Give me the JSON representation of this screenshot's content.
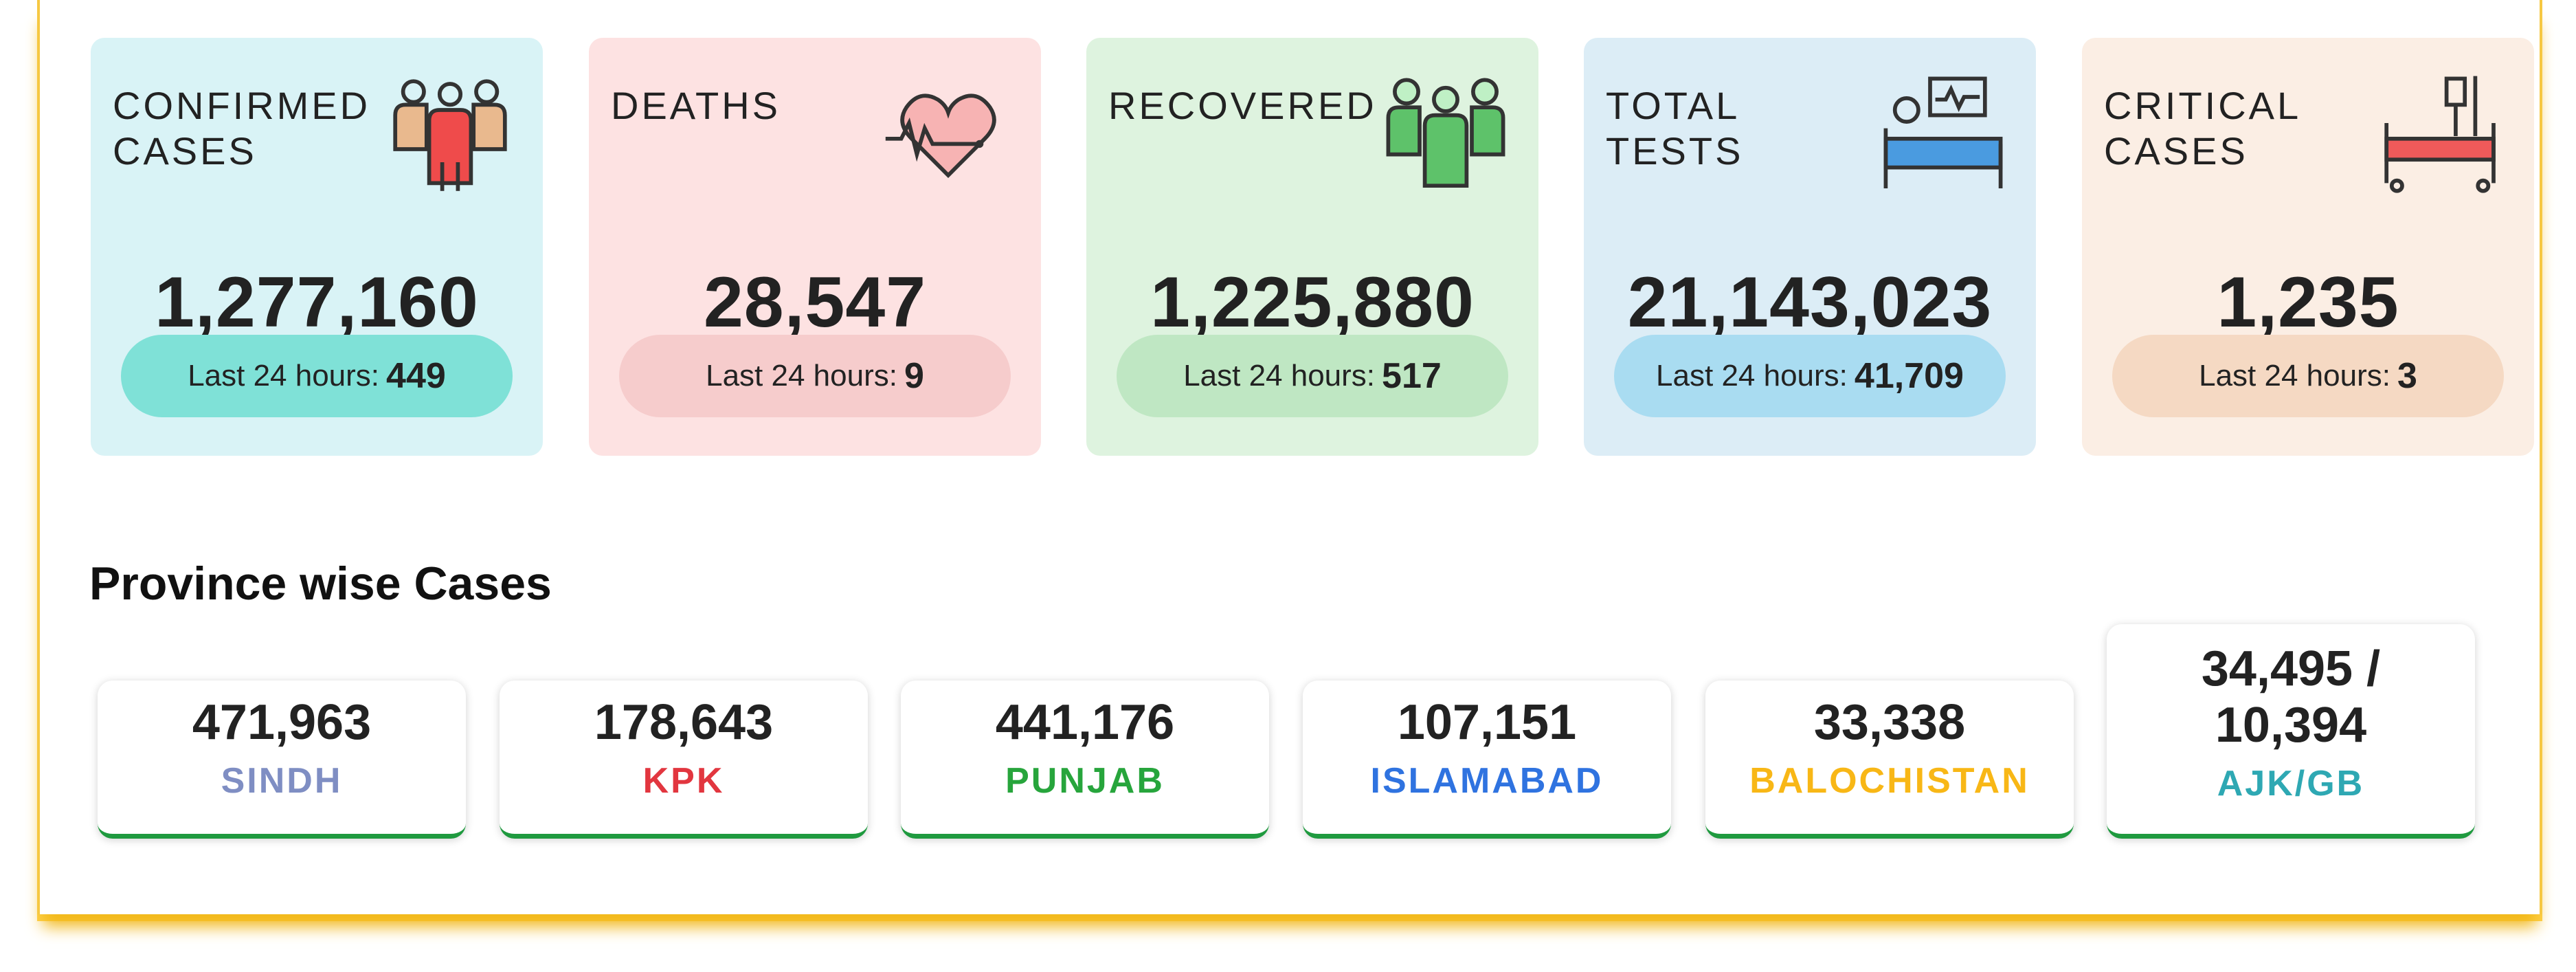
{
  "stats": [
    {
      "title": "CONFIRMED\nCASES",
      "value": "1,277,160",
      "last_label": "Last 24 hours:",
      "last_value": "449",
      "icon": "people-group-icon",
      "bg": "#d9f3f6",
      "pill": "#7fe1d7"
    },
    {
      "title": "DEATHS",
      "value": "28,547",
      "last_label": "Last 24 hours:",
      "last_value": "9",
      "icon": "heartbeat-icon",
      "bg": "#fde2e2",
      "pill": "#f6cccc"
    },
    {
      "title": "RECOVERED",
      "value": "1,225,880",
      "last_label": "Last 24 hours:",
      "last_value": "517",
      "icon": "recovered-people-icon",
      "bg": "#def3df",
      "pill": "#bfe7c3"
    },
    {
      "title": "TOTAL\nTESTS",
      "value": "21,143,023",
      "last_label": "Last 24 hours:",
      "last_value": "41,709",
      "icon": "patient-monitor-icon",
      "bg": "#dcedf6",
      "pill": "#a9dcf1"
    },
    {
      "title": "CRITICAL\nCASES",
      "value": "1,235",
      "last_label": "Last 24 hours:",
      "last_value": "3",
      "icon": "hospital-bed-icon",
      "bg": "#fbeee4",
      "pill": "#f5d9c3"
    }
  ],
  "section_title": "Province wise Cases",
  "provinces": [
    {
      "value": "471,963",
      "name": "SINDH",
      "color": "#7f8ec3"
    },
    {
      "value": "178,643",
      "name": "KPK",
      "color": "#e2363f"
    },
    {
      "value": "441,176",
      "name": "PUNJAB",
      "color": "#27a53c"
    },
    {
      "value": "107,151",
      "name": "ISLAMABAD",
      "color": "#2f73e0"
    },
    {
      "value": "33,338",
      "name": "BALOCHISTAN",
      "color": "#f8b716"
    },
    {
      "value": "34,495 / 10,394",
      "name": "AJK/GB",
      "color": "#2ea8b3"
    }
  ]
}
